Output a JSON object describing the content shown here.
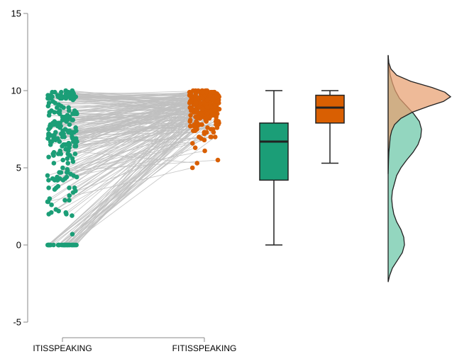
{
  "chart_data": {
    "type": "raincloud",
    "title": "",
    "xlabel": "",
    "ylabel": "",
    "ylim": [
      -5,
      15
    ],
    "y_ticks": [
      {
        "value": -5,
        "label": "-5"
      },
      {
        "value": 0,
        "label": "0"
      },
      {
        "value": 5,
        "label": "5"
      },
      {
        "value": 10,
        "label": "10"
      },
      {
        "value": 15,
        "label": "15"
      }
    ],
    "categories": [
      "ITISSPEAKING",
      "FITISSPEAKING"
    ],
    "grid": false,
    "legend": "none",
    "colors": {
      "pre": "#1b9e77",
      "post": "#d95f02",
      "pre_density": "#80cfb4",
      "post_density": "#e8a070",
      "overlap_density": "#a88c5e",
      "lines": "#c0c0c0"
    },
    "series": [
      {
        "category": "ITISSPEAKING",
        "box": {
          "min": 0,
          "q1": 4.2,
          "median": 6.7,
          "q3": 7.9,
          "max": 10
        },
        "distribution_note": "n ~ 250, many at 0, spread 2-10"
      },
      {
        "category": "FITISSPEAKING",
        "box": {
          "min": 5.3,
          "q1": 7.9,
          "median": 8.9,
          "q3": 9.7,
          "max": 10
        },
        "distribution_note": "concentrated 7-10, a few near 5"
      }
    ]
  }
}
